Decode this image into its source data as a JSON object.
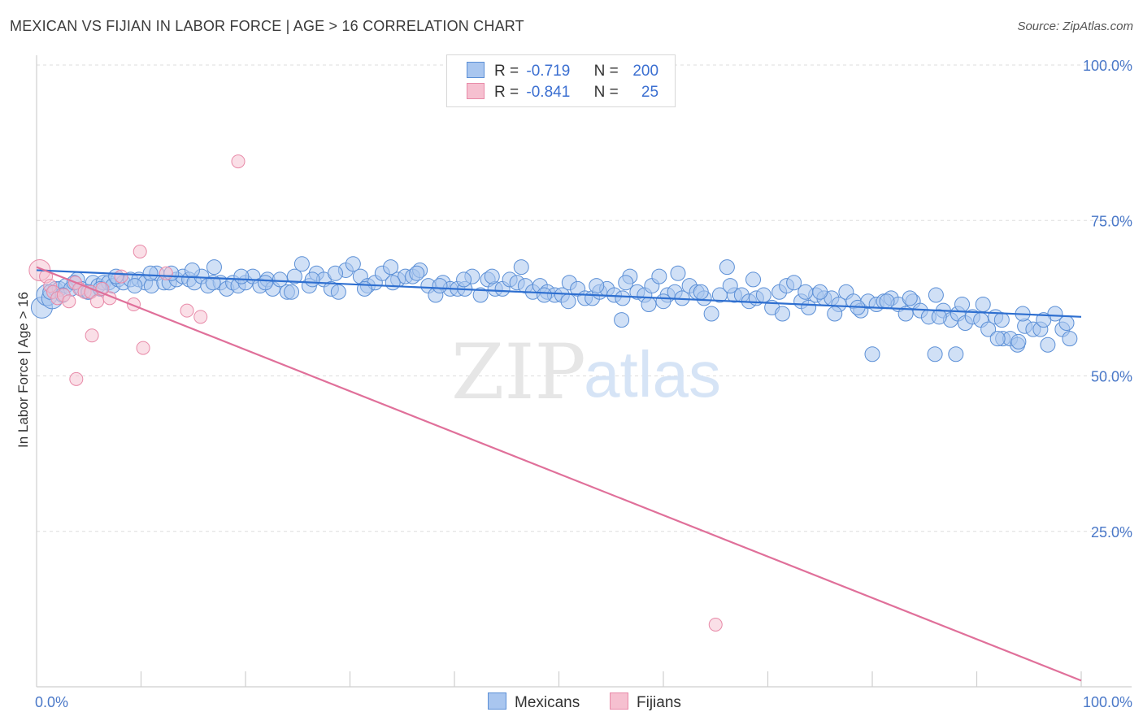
{
  "header": {
    "title": "MEXICAN VS FIJIAN IN LABOR FORCE | AGE > 16 CORRELATION CHART",
    "source": "Source: ZipAtlas.com"
  },
  "legend": {
    "rows": [
      {
        "r_label": "R =",
        "r_value": "-0.719",
        "n_label": "N =",
        "n_value": "200"
      },
      {
        "r_label": "R =",
        "r_value": "-0.841",
        "n_label": "N =",
        "n_value": "25"
      }
    ]
  },
  "bottom_legend": {
    "mexicans": "Mexicans",
    "fijians": "Fijians"
  },
  "watermark": {
    "zip": "ZIP",
    "atlas": "atlas"
  },
  "colors": {
    "mexican_fill": "#a9c6ef",
    "mexican_stroke": "#5b8fd6",
    "mexican_line": "#2e6fd0",
    "fijian_fill": "#f6c0d0",
    "fijian_stroke": "#e88aa8",
    "fijian_line": "#e0709a",
    "tick_blue": "#4a78c8"
  },
  "chart_data": {
    "type": "scatter",
    "title": "MEXICAN VS FIJIAN IN LABOR FORCE | AGE > 16 CORRELATION CHART",
    "xlabel": "",
    "ylabel": "In Labor Force | Age > 16",
    "xlim": [
      0,
      100
    ],
    "ylim": [
      0,
      100
    ],
    "x_tick_labels": [
      "0.0%",
      "100.0%"
    ],
    "y_ticks": [
      25,
      50,
      75,
      100
    ],
    "y_tick_labels": [
      "25.0%",
      "50.0%",
      "75.0%",
      "100.0%"
    ],
    "grid": true,
    "legend_position": "top-center",
    "series": [
      {
        "name": "Mexicans",
        "r": -0.719,
        "n": 200,
        "trend": {
          "x": [
            0,
            100
          ],
          "y": [
            67.0,
            59.5
          ]
        },
        "points": [
          [
            0.5,
            61.0
          ],
          [
            1.0,
            63.0
          ],
          [
            1.5,
            62.5
          ],
          [
            1.8,
            64.0
          ],
          [
            2.2,
            64.0
          ],
          [
            2.8,
            64.5
          ],
          [
            3.3,
            64.0
          ],
          [
            3.9,
            65.5
          ],
          [
            4.3,
            64.0
          ],
          [
            4.9,
            63.5
          ],
          [
            5.4,
            65.0
          ],
          [
            5.9,
            64.5
          ],
          [
            6.4,
            65.0
          ],
          [
            6.9,
            65.0
          ],
          [
            7.3,
            64.5
          ],
          [
            7.8,
            65.5
          ],
          [
            8.3,
            65.0
          ],
          [
            9.0,
            65.5
          ],
          [
            9.8,
            65.5
          ],
          [
            10.4,
            65.0
          ],
          [
            11.0,
            64.5
          ],
          [
            11.5,
            66.5
          ],
          [
            12.2,
            65.0
          ],
          [
            12.7,
            65.0
          ],
          [
            13.4,
            65.5
          ],
          [
            14.0,
            66.0
          ],
          [
            14.6,
            65.5
          ],
          [
            15.1,
            65.0
          ],
          [
            15.8,
            66.0
          ],
          [
            16.4,
            64.5
          ],
          [
            17.0,
            67.5
          ],
          [
            17.6,
            65.0
          ],
          [
            18.2,
            64.0
          ],
          [
            18.8,
            65.0
          ],
          [
            19.3,
            64.5
          ],
          [
            20.0,
            65.0
          ],
          [
            20.7,
            66.0
          ],
          [
            21.4,
            64.5
          ],
          [
            22.1,
            65.5
          ],
          [
            22.6,
            64.0
          ],
          [
            23.3,
            65.5
          ],
          [
            24.0,
            63.5
          ],
          [
            24.7,
            66.0
          ],
          [
            25.4,
            68.0
          ],
          [
            26.1,
            64.5
          ],
          [
            26.8,
            66.5
          ],
          [
            27.5,
            65.5
          ],
          [
            28.2,
            64.0
          ],
          [
            28.9,
            63.5
          ],
          [
            29.6,
            67.0
          ],
          [
            30.3,
            68.0
          ],
          [
            31.0,
            66.0
          ],
          [
            31.7,
            64.5
          ],
          [
            32.4,
            65.0
          ],
          [
            33.1,
            66.5
          ],
          [
            33.9,
            67.5
          ],
          [
            34.6,
            65.5
          ],
          [
            35.3,
            66.0
          ],
          [
            36.0,
            66.0
          ],
          [
            36.7,
            67.0
          ],
          [
            37.5,
            64.5
          ],
          [
            38.2,
            63.0
          ],
          [
            38.9,
            65.0
          ],
          [
            39.6,
            64.0
          ],
          [
            40.3,
            64.0
          ],
          [
            41.0,
            64.0
          ],
          [
            41.7,
            66.0
          ],
          [
            42.5,
            63.0
          ],
          [
            43.2,
            65.5
          ],
          [
            43.9,
            64.0
          ],
          [
            44.6,
            64.0
          ],
          [
            45.3,
            65.5
          ],
          [
            46.0,
            65.0
          ],
          [
            46.8,
            64.5
          ],
          [
            47.5,
            63.5
          ],
          [
            48.2,
            64.5
          ],
          [
            48.9,
            63.5
          ],
          [
            49.6,
            63.0
          ],
          [
            50.3,
            63.0
          ],
          [
            51.0,
            65.0
          ],
          [
            51.8,
            64.0
          ],
          [
            52.5,
            62.5
          ],
          [
            53.2,
            62.5
          ],
          [
            53.9,
            63.5
          ],
          [
            54.6,
            64.0
          ],
          [
            55.3,
            63.0
          ],
          [
            56.1,
            62.5
          ],
          [
            56.8,
            66.0
          ],
          [
            57.5,
            63.5
          ],
          [
            58.2,
            63.0
          ],
          [
            58.9,
            64.5
          ],
          [
            59.6,
            66.0
          ],
          [
            60.4,
            63.0
          ],
          [
            61.1,
            63.5
          ],
          [
            61.8,
            62.5
          ],
          [
            62.5,
            64.5
          ],
          [
            63.2,
            63.5
          ],
          [
            63.9,
            62.5
          ],
          [
            64.6,
            60.0
          ],
          [
            65.4,
            63.0
          ],
          [
            66.1,
            67.5
          ],
          [
            66.8,
            63.0
          ],
          [
            67.5,
            63.0
          ],
          [
            68.2,
            62.0
          ],
          [
            68.9,
            62.5
          ],
          [
            69.6,
            63.0
          ],
          [
            70.4,
            61.0
          ],
          [
            71.1,
            63.5
          ],
          [
            71.8,
            64.5
          ],
          [
            72.5,
            65.0
          ],
          [
            73.2,
            62.0
          ],
          [
            73.9,
            61.0
          ],
          [
            74.6,
            63.0
          ],
          [
            75.4,
            62.5
          ],
          [
            76.1,
            62.5
          ],
          [
            76.8,
            61.5
          ],
          [
            77.5,
            63.5
          ],
          [
            78.2,
            62.0
          ],
          [
            78.9,
            60.5
          ],
          [
            79.6,
            62.0
          ],
          [
            80.4,
            61.5
          ],
          [
            81.1,
            62.0
          ],
          [
            81.8,
            62.5
          ],
          [
            82.5,
            61.5
          ],
          [
            83.2,
            60.0
          ],
          [
            83.9,
            62.0
          ],
          [
            84.6,
            60.5
          ],
          [
            85.4,
            59.5
          ],
          [
            86.1,
            63.0
          ],
          [
            86.8,
            60.5
          ],
          [
            87.5,
            59.0
          ],
          [
            88.2,
            60.0
          ],
          [
            88.9,
            58.5
          ],
          [
            89.6,
            59.5
          ],
          [
            90.4,
            59.0
          ],
          [
            91.1,
            57.5
          ],
          [
            91.8,
            59.5
          ],
          [
            92.5,
            56.0
          ],
          [
            93.2,
            56.0
          ],
          [
            93.9,
            55.0
          ],
          [
            94.6,
            58.0
          ],
          [
            95.4,
            57.5
          ],
          [
            96.1,
            57.5
          ],
          [
            96.8,
            55.0
          ],
          [
            97.5,
            60.0
          ],
          [
            98.2,
            57.5
          ],
          [
            98.9,
            56.0
          ],
          [
            1.3,
            63.5
          ],
          [
            2.5,
            63.0
          ],
          [
            3.6,
            65.0
          ],
          [
            5.0,
            63.5
          ],
          [
            6.1,
            64.0
          ],
          [
            7.6,
            66.0
          ],
          [
            9.4,
            64.5
          ],
          [
            10.9,
            66.5
          ],
          [
            12.9,
            66.5
          ],
          [
            14.9,
            67.0
          ],
          [
            16.9,
            65.0
          ],
          [
            19.6,
            66.0
          ],
          [
            21.9,
            65.0
          ],
          [
            24.4,
            63.5
          ],
          [
            26.4,
            65.5
          ],
          [
            28.6,
            66.5
          ],
          [
            31.4,
            64.0
          ],
          [
            34.1,
            65.0
          ],
          [
            36.4,
            66.5
          ],
          [
            38.6,
            64.5
          ],
          [
            40.9,
            65.5
          ],
          [
            43.6,
            66.0
          ],
          [
            46.4,
            67.5
          ],
          [
            48.6,
            63.0
          ],
          [
            50.9,
            62.0
          ],
          [
            53.6,
            64.5
          ],
          [
            56.4,
            65.0
          ],
          [
            58.6,
            61.5
          ],
          [
            61.4,
            66.5
          ],
          [
            63.6,
            63.5
          ],
          [
            66.4,
            64.5
          ],
          [
            68.6,
            65.5
          ],
          [
            71.4,
            60.0
          ],
          [
            73.6,
            63.5
          ],
          [
            76.4,
            60.0
          ],
          [
            78.6,
            61.0
          ],
          [
            81.4,
            62.0
          ],
          [
            83.6,
            62.5
          ],
          [
            86.4,
            59.5
          ],
          [
            88.6,
            61.5
          ],
          [
            90.6,
            61.5
          ],
          [
            92.4,
            59.0
          ],
          [
            94.4,
            60.0
          ],
          [
            96.4,
            59.0
          ],
          [
            98.6,
            58.5
          ],
          [
            94.0,
            55.5
          ],
          [
            92.0,
            56.0
          ],
          [
            88.0,
            53.5
          ],
          [
            86.0,
            53.5
          ],
          [
            80.0,
            53.5
          ],
          [
            75.0,
            63.5
          ],
          [
            60.0,
            62.0
          ],
          [
            56.0,
            59.0
          ]
        ]
      },
      {
        "name": "Fijians",
        "r": -0.841,
        "n": 25,
        "trend": {
          "x": [
            0,
            100
          ],
          "y": [
            67.5,
            1.0
          ]
        },
        "points": [
          [
            0.3,
            67.0
          ],
          [
            0.9,
            66.0
          ],
          [
            1.3,
            64.5
          ],
          [
            1.6,
            63.5
          ],
          [
            2.0,
            62.5
          ],
          [
            2.6,
            63.0
          ],
          [
            3.1,
            62.0
          ],
          [
            3.7,
            65.0
          ],
          [
            4.1,
            64.0
          ],
          [
            4.6,
            63.5
          ],
          [
            5.2,
            63.5
          ],
          [
            5.8,
            62.0
          ],
          [
            6.3,
            64.0
          ],
          [
            7.0,
            62.5
          ],
          [
            8.1,
            66.0
          ],
          [
            9.3,
            61.5
          ],
          [
            9.9,
            70.0
          ],
          [
            12.4,
            66.5
          ],
          [
            14.4,
            60.5
          ],
          [
            15.7,
            59.5
          ],
          [
            5.3,
            56.5
          ],
          [
            10.2,
            54.5
          ],
          [
            3.8,
            49.5
          ],
          [
            19.3,
            84.5
          ],
          [
            65.0,
            10.0
          ]
        ]
      }
    ]
  }
}
